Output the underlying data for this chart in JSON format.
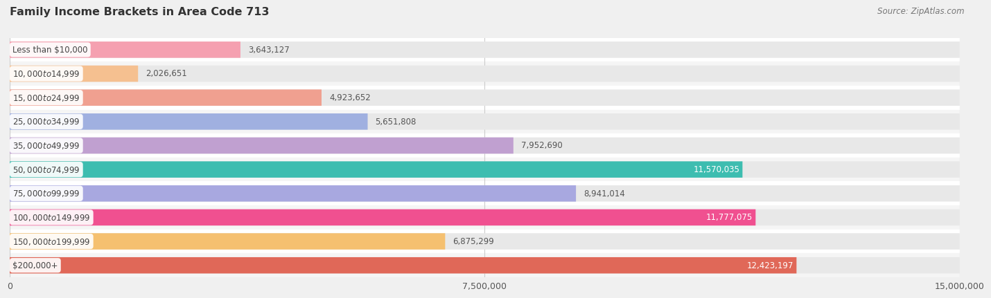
{
  "title": "Family Income Brackets in Area Code 713",
  "source": "Source: ZipAtlas.com",
  "categories": [
    "Less than $10,000",
    "$10,000 to $14,999",
    "$15,000 to $24,999",
    "$25,000 to $34,999",
    "$35,000 to $49,999",
    "$50,000 to $74,999",
    "$75,000 to $99,999",
    "$100,000 to $149,999",
    "$150,000 to $199,999",
    "$200,000+"
  ],
  "values": [
    3643127,
    2026651,
    4923652,
    5651808,
    7952690,
    11570035,
    8941014,
    11777075,
    6875299,
    12423197
  ],
  "bar_colors": [
    "#f5a0b0",
    "#f5c090",
    "#f0a090",
    "#a0b0e0",
    "#c0a0d0",
    "#3dbdb0",
    "#a8a8e0",
    "#f05090",
    "#f5c070",
    "#e06858"
  ],
  "value_labels": [
    "3,643,127",
    "2,026,651",
    "4,923,652",
    "5,651,808",
    "7,952,690",
    "11,570,035",
    "8,941,014",
    "11,777,075",
    "6,875,299",
    "12,423,197"
  ],
  "value_inside": [
    false,
    false,
    false,
    false,
    false,
    true,
    false,
    true,
    false,
    true
  ],
  "xlim": [
    0,
    15000000
  ],
  "xticks": [
    0,
    7500000,
    15000000
  ],
  "xticklabels": [
    "0",
    "7,500,000",
    "15,000,000"
  ],
  "background_color": "#f0f0f0",
  "row_bg_even": "#f7f7f7",
  "row_bg_odd": "#eeeeee",
  "full_bar_color": "#e8e8e8",
  "bar_height": 0.68
}
